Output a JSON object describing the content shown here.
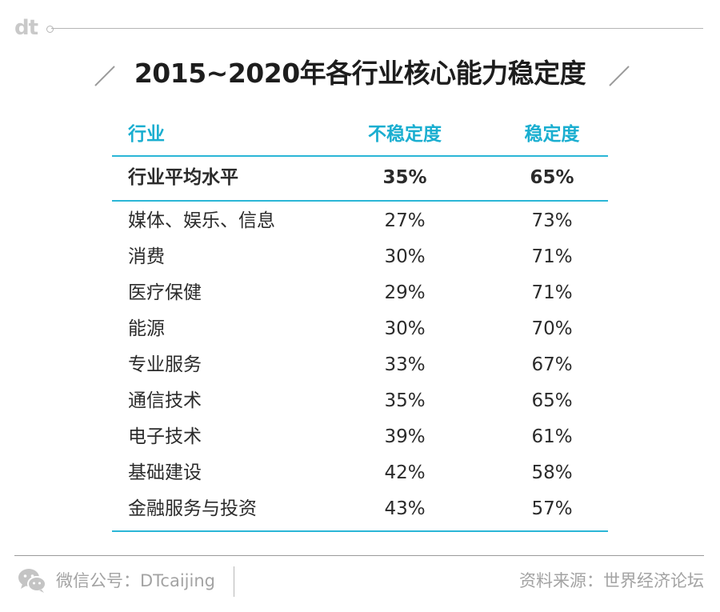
{
  "brand": {
    "logo": "dt"
  },
  "chart_data": {
    "type": "table",
    "title": "2015~2020年各行业核心能力稳定度",
    "columns": [
      "行业",
      "不稳定度",
      "稳定度"
    ],
    "average": {
      "industry": "行业平均水平",
      "instability": "35%",
      "stability": "65%"
    },
    "rows": [
      {
        "industry": "媒体、娱乐、信息",
        "instability": "27%",
        "stability": "73%"
      },
      {
        "industry": "消费",
        "instability": "30%",
        "stability": "71%"
      },
      {
        "industry": "医疗保健",
        "instability": "29%",
        "stability": "71%"
      },
      {
        "industry": "能源",
        "instability": "30%",
        "stability": "70%"
      },
      {
        "industry": "专业服务",
        "instability": "33%",
        "stability": "67%"
      },
      {
        "industry": "通信技术",
        "instability": "35%",
        "stability": "65%"
      },
      {
        "industry": "电子技术",
        "instability": "39%",
        "stability": "61%"
      },
      {
        "industry": "基础建设",
        "instability": "42%",
        "stability": "58%"
      },
      {
        "industry": "金融服务与投资",
        "instability": "43%",
        "stability": "57%"
      }
    ]
  },
  "footer": {
    "wechat": "微信公号：DTcaijing",
    "source": "资料来源：世界经济论坛"
  },
  "colors": {
    "accent": "#2bb6d6",
    "header_text": "#1aaed0",
    "muted": "#a3a3a3"
  },
  "icons": {
    "wechat": "wechat-icon"
  }
}
